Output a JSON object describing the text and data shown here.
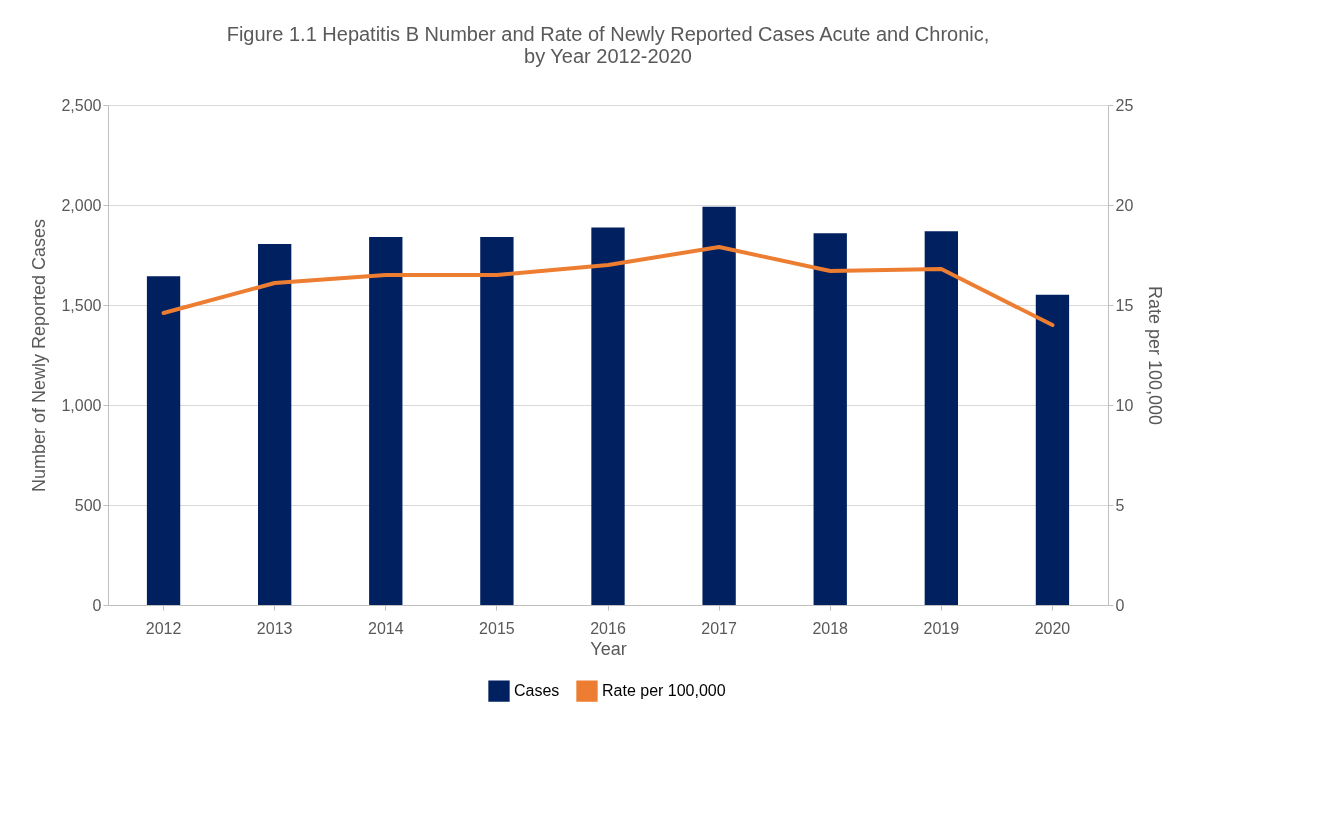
{
  "chart_data": {
    "type": "bar",
    "title": "Figure 1.1 Hepatitis B Number and Rate of Newly Reported Cases Acute and Chronic,\nby Year 2012-2020",
    "xlabel": "Year",
    "ylabel": "Number of Newly Reported Cases",
    "y2label": "Rate per 100,000",
    "categories": [
      "2012",
      "2013",
      "2014",
      "2015",
      "2016",
      "2017",
      "2018",
      "2019",
      "2020"
    ],
    "series": [
      {
        "name": "Cases",
        "color": "#002060",
        "values": [
          1644,
          1805,
          1840,
          1840,
          1888,
          1991,
          1859,
          1869,
          1551
        ]
      },
      {
        "name": "Rate per 100,000",
        "type": "line",
        "axis": "y2",
        "color": "#ed7d31",
        "values": [
          14.6,
          16.1,
          16.5,
          16.5,
          17.0,
          17.9,
          16.7,
          16.8,
          14.0
        ]
      }
    ],
    "ylim": [
      0,
      2500
    ],
    "yticks": [
      0,
      500,
      {
        "value": 1000,
        "label": "1,000"
      },
      {
        "value": 1500,
        "label": "1,500"
      },
      {
        "value": 2000,
        "label": "2,000"
      },
      {
        "value": 2500,
        "label": "2,500"
      }
    ],
    "y2lim": [
      0,
      25
    ],
    "y2ticks": [
      0,
      5,
      10,
      15,
      20,
      25
    ],
    "grid": "y",
    "legend": "bottom",
    "marker": "none",
    "line_style": "solid"
  }
}
